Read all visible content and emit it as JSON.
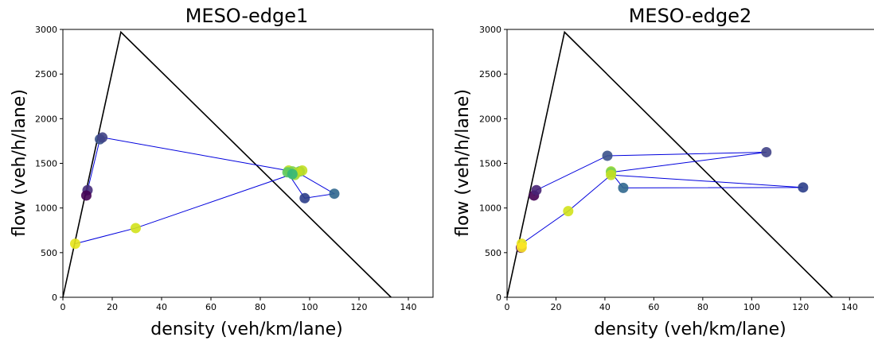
{
  "chart_data": [
    {
      "type": "scatter",
      "title": "MESO-edge1",
      "xlabel": "density (veh/km/lane)",
      "ylabel": "flow (veh/h/lane)",
      "xlim": [
        0,
        150
      ],
      "ylim": [
        0,
        3000
      ],
      "xticks": [
        0,
        20,
        40,
        60,
        80,
        100,
        120,
        140
      ],
      "yticks": [
        0,
        500,
        1000,
        1500,
        2000,
        2500,
        3000
      ],
      "fundamental_diagram": [
        [
          0,
          0
        ],
        [
          23.5,
          2970
        ],
        [
          133,
          0
        ]
      ],
      "trajectory_color": "#0000dd",
      "points": [
        {
          "x": 10,
          "y": 1200,
          "color": "#472d7b"
        },
        {
          "x": 9.5,
          "y": 1140,
          "color": "#440154"
        },
        {
          "x": 15,
          "y": 1770,
          "color": "#3b528b"
        },
        {
          "x": 16,
          "y": 1790,
          "color": "#414487"
        },
        {
          "x": 93,
          "y": 1410,
          "color": "#7ad151"
        },
        {
          "x": 95,
          "y": 1400,
          "color": "#addc30"
        },
        {
          "x": 110,
          "y": 1160,
          "color": "#31688e"
        },
        {
          "x": 98,
          "y": 1110,
          "color": "#2c3e8a"
        },
        {
          "x": 91,
          "y": 1400,
          "color": "#5ec962"
        },
        {
          "x": 97,
          "y": 1420,
          "color": "#c2df23"
        },
        {
          "x": 93,
          "y": 1380,
          "color": "#35b779"
        },
        {
          "x": 29.5,
          "y": 775,
          "color": "#d2e21b"
        },
        {
          "x": 5,
          "y": 600,
          "color": "#e5e419"
        }
      ],
      "extra_markers": [
        {
          "x": 91.5,
          "y": 1420,
          "color": "#bddf26"
        },
        {
          "x": 96,
          "y": 1410,
          "color": "#1fa188"
        },
        {
          "x": 94,
          "y": 1370,
          "color": "#9fda3a"
        }
      ]
    },
    {
      "type": "scatter",
      "title": "MESO-edge2",
      "xlabel": "density (veh/km/lane)",
      "ylabel": "flow (veh/h/lane)",
      "xlim": [
        0,
        150
      ],
      "ylim": [
        0,
        3000
      ],
      "xticks": [
        0,
        20,
        40,
        60,
        80,
        100,
        120,
        140
      ],
      "yticks": [
        0,
        500,
        1000,
        1500,
        2000,
        2500,
        3000
      ],
      "fundamental_diagram": [
        [
          0,
          0
        ],
        [
          23.5,
          2970
        ],
        [
          133,
          0
        ]
      ],
      "trajectory_color": "#0000dd",
      "points": [
        {
          "x": 11,
          "y": 1140,
          "color": "#440154"
        },
        {
          "x": 12,
          "y": 1200,
          "color": "#482475"
        },
        {
          "x": 41,
          "y": 1585,
          "color": "#3b528b"
        },
        {
          "x": 106,
          "y": 1625,
          "color": "#414487"
        },
        {
          "x": 42.5,
          "y": 1400,
          "color": "#7ad151"
        },
        {
          "x": 47.5,
          "y": 1225,
          "color": "#31688e"
        },
        {
          "x": 121,
          "y": 1230,
          "color": "#2c3e8a"
        },
        {
          "x": 42.5,
          "y": 1370,
          "color": "#c2df23"
        },
        {
          "x": 25,
          "y": 965,
          "color": "#d2e21b"
        },
        {
          "x": 6,
          "y": 600,
          "color": "#e5e419"
        },
        {
          "x": 6,
          "y": 560,
          "color": "#fde725"
        }
      ],
      "extra_markers": [
        {
          "x": 42.5,
          "y": 1410,
          "color": "#a8db34"
        },
        {
          "x": 5.7,
          "y": 555,
          "color": "#5a0e6a"
        }
      ]
    }
  ]
}
